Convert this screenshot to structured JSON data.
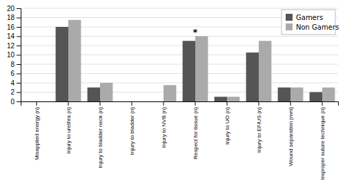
{
  "chart_data": {
    "type": "bar",
    "categories": [
      "Misapplied energy (n)",
      "Injury to urethra (n)",
      "Injury to bladder neck (n)",
      "Injury to bladder (n)",
      "Injury to NVB (n)",
      "Respect for tissue (n)",
      "Injury to UO (n)",
      "Injury to EF/US (n)",
      "Wound separation (mm)",
      "Improper suture technique (n)"
    ],
    "series": [
      {
        "name": "Gamers",
        "color": "#555555",
        "values": [
          0,
          16,
          3,
          0,
          0,
          13,
          1,
          10.5,
          3,
          2
        ]
      },
      {
        "name": "Non Gamers",
        "color": "#aaaaaa",
        "values": [
          0,
          17.5,
          4,
          0,
          3.5,
          14,
          1,
          13,
          3,
          3
        ]
      }
    ],
    "annotations": [
      {
        "text": "*",
        "category": "Respect for tissue (n)"
      }
    ],
    "ylim": [
      0,
      20
    ],
    "yticks": [
      0,
      2,
      4,
      6,
      8,
      10,
      12,
      14,
      16,
      18,
      20
    ],
    "grid": true,
    "legend": "top-right"
  }
}
